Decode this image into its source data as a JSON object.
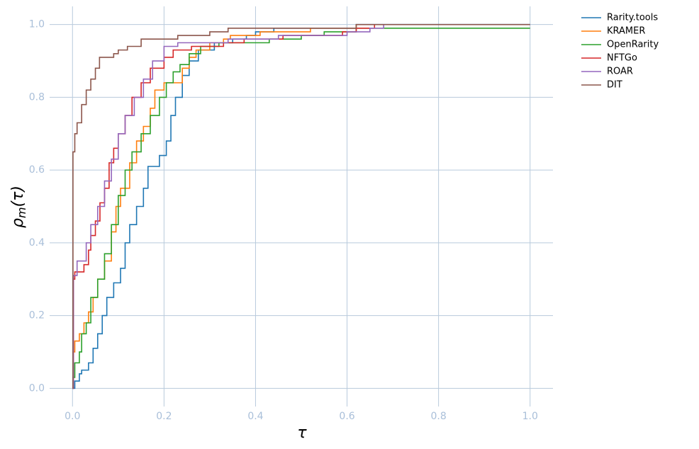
{
  "chart_data": {
    "type": "step",
    "xlabel": "τ",
    "ylabel": [
      "ρ",
      "m",
      "(τ)"
    ],
    "xlim": [
      -0.05,
      1.05
    ],
    "ylim": [
      -0.05,
      1.05
    ],
    "xticks": [
      {
        "value": 0,
        "label": "0.0"
      },
      0.2,
      0.4,
      0.6,
      0.8,
      {
        "value": 1,
        "label": "1.0"
      }
    ],
    "yticks": [
      {
        "value": 0,
        "label": "0.0"
      },
      0.2,
      0.4,
      0.6,
      0.8,
      {
        "value": 1,
        "label": "1.0"
      }
    ],
    "grid": true,
    "legend": "outside-upper-right",
    "series": [
      {
        "name": "Rarity.tools",
        "color": "#1f77b4",
        "x": [
          0,
          0.005,
          0.015,
          0.02,
          0.035,
          0.045,
          0.055,
          0.065,
          0.075,
          0.09,
          0.105,
          0.115,
          0.125,
          0.14,
          0.155,
          0.165,
          0.19,
          0.205,
          0.215,
          0.225,
          0.24,
          0.255,
          0.275,
          0.31,
          0.35,
          0.38,
          0.4,
          0.44,
          0.62,
          1.0
        ],
        "values": [
          0,
          0.02,
          0.04,
          0.05,
          0.07,
          0.11,
          0.15,
          0.2,
          0.25,
          0.29,
          0.33,
          0.4,
          0.45,
          0.5,
          0.55,
          0.61,
          0.64,
          0.68,
          0.75,
          0.8,
          0.86,
          0.9,
          0.93,
          0.95,
          0.96,
          0.97,
          0.98,
          0.99,
          1.0,
          1.0
        ]
      },
      {
        "name": "KRAMER",
        "color": "#ff7f0e",
        "x": [
          0,
          0.005,
          0.015,
          0.025,
          0.035,
          0.045,
          0.055,
          0.07,
          0.085,
          0.095,
          0.105,
          0.125,
          0.14,
          0.155,
          0.17,
          0.18,
          0.2,
          0.24,
          0.255,
          0.27,
          0.3,
          0.33,
          0.345,
          0.41,
          0.52,
          0.62
        ],
        "values": [
          0.1,
          0.13,
          0.15,
          0.18,
          0.21,
          0.25,
          0.3,
          0.35,
          0.43,
          0.5,
          0.55,
          0.62,
          0.68,
          0.72,
          0.77,
          0.82,
          0.84,
          0.88,
          0.91,
          0.93,
          0.95,
          0.96,
          0.97,
          0.98,
          0.99,
          1.0
        ]
      },
      {
        "name": "OpenRarity",
        "color": "#2ca02c",
        "x": [
          0,
          0.005,
          0.015,
          0.02,
          0.03,
          0.04,
          0.055,
          0.07,
          0.085,
          0.1,
          0.115,
          0.13,
          0.15,
          0.17,
          0.19,
          0.205,
          0.22,
          0.235,
          0.255,
          0.28,
          0.32,
          0.43,
          0.5,
          0.55,
          0.62,
          1.0
        ],
        "values": [
          0.03,
          0.07,
          0.1,
          0.15,
          0.18,
          0.25,
          0.3,
          0.37,
          0.45,
          0.53,
          0.6,
          0.65,
          0.7,
          0.75,
          0.8,
          0.84,
          0.87,
          0.89,
          0.92,
          0.94,
          0.95,
          0.96,
          0.97,
          0.98,
          0.99,
          0.99
        ]
      },
      {
        "name": "NFTGo",
        "color": "#d62728",
        "x": [
          0,
          0.002,
          0.005,
          0.025,
          0.035,
          0.04,
          0.05,
          0.06,
          0.07,
          0.08,
          0.09,
          0.1,
          0.115,
          0.13,
          0.15,
          0.17,
          0.2,
          0.22,
          0.26,
          0.33,
          0.375,
          0.46,
          0.59,
          0.62,
          0.66
        ],
        "values": [
          0,
          0.3,
          0.32,
          0.34,
          0.38,
          0.42,
          0.46,
          0.51,
          0.55,
          0.62,
          0.66,
          0.7,
          0.75,
          0.8,
          0.84,
          0.88,
          0.91,
          0.93,
          0.94,
          0.95,
          0.96,
          0.97,
          0.98,
          0.99,
          1.0
        ]
      },
      {
        "name": "ROAR",
        "color": "#9467bd",
        "x": [
          0,
          0.002,
          0.01,
          0.03,
          0.04,
          0.055,
          0.07,
          0.085,
          0.1,
          0.115,
          0.135,
          0.155,
          0.175,
          0.2,
          0.23,
          0.34,
          0.45,
          0.6,
          0.65,
          0.68
        ],
        "values": [
          0,
          0.31,
          0.35,
          0.4,
          0.45,
          0.5,
          0.57,
          0.63,
          0.7,
          0.75,
          0.8,
          0.85,
          0.9,
          0.94,
          0.95,
          0.96,
          0.97,
          0.98,
          0.99,
          1.0
        ]
      },
      {
        "name": "DIT",
        "color": "#8c564b",
        "x": [
          0,
          0.001,
          0.005,
          0.01,
          0.02,
          0.03,
          0.04,
          0.05,
          0.059,
          0.09,
          0.1,
          0.12,
          0.15,
          0.23,
          0.3,
          0.34,
          0.62,
          1.0
        ],
        "values": [
          0,
          0.65,
          0.7,
          0.73,
          0.78,
          0.82,
          0.85,
          0.88,
          0.91,
          0.92,
          0.93,
          0.94,
          0.96,
          0.97,
          0.98,
          0.99,
          1.0,
          1.0
        ]
      }
    ]
  }
}
